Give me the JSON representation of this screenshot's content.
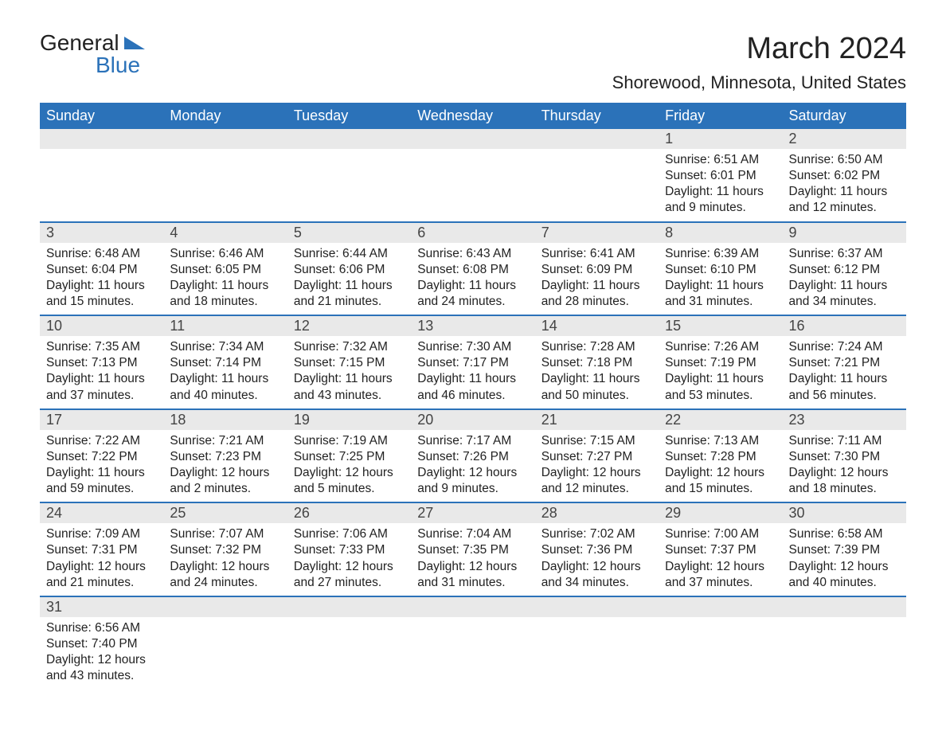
{
  "logo": {
    "text1": "General",
    "text2": "Blue"
  },
  "title": "March 2024",
  "location": "Shorewood, Minnesota, United States",
  "colors": {
    "header_bg": "#2b72b9",
    "header_text": "#ffffff",
    "daynum_bg": "#e9e9e9",
    "text": "#222222",
    "row_divider": "#2b72b9"
  },
  "weekdays": [
    "Sunday",
    "Monday",
    "Tuesday",
    "Wednesday",
    "Thursday",
    "Friday",
    "Saturday"
  ],
  "weeks": [
    [
      null,
      null,
      null,
      null,
      null,
      {
        "d": "1",
        "sr": "Sunrise: 6:51 AM",
        "ss": "Sunset: 6:01 PM",
        "dl1": "Daylight: 11 hours",
        "dl2": "and 9 minutes."
      },
      {
        "d": "2",
        "sr": "Sunrise: 6:50 AM",
        "ss": "Sunset: 6:02 PM",
        "dl1": "Daylight: 11 hours",
        "dl2": "and 12 minutes."
      }
    ],
    [
      {
        "d": "3",
        "sr": "Sunrise: 6:48 AM",
        "ss": "Sunset: 6:04 PM",
        "dl1": "Daylight: 11 hours",
        "dl2": "and 15 minutes."
      },
      {
        "d": "4",
        "sr": "Sunrise: 6:46 AM",
        "ss": "Sunset: 6:05 PM",
        "dl1": "Daylight: 11 hours",
        "dl2": "and 18 minutes."
      },
      {
        "d": "5",
        "sr": "Sunrise: 6:44 AM",
        "ss": "Sunset: 6:06 PM",
        "dl1": "Daylight: 11 hours",
        "dl2": "and 21 minutes."
      },
      {
        "d": "6",
        "sr": "Sunrise: 6:43 AM",
        "ss": "Sunset: 6:08 PM",
        "dl1": "Daylight: 11 hours",
        "dl2": "and 24 minutes."
      },
      {
        "d": "7",
        "sr": "Sunrise: 6:41 AM",
        "ss": "Sunset: 6:09 PM",
        "dl1": "Daylight: 11 hours",
        "dl2": "and 28 minutes."
      },
      {
        "d": "8",
        "sr": "Sunrise: 6:39 AM",
        "ss": "Sunset: 6:10 PM",
        "dl1": "Daylight: 11 hours",
        "dl2": "and 31 minutes."
      },
      {
        "d": "9",
        "sr": "Sunrise: 6:37 AM",
        "ss": "Sunset: 6:12 PM",
        "dl1": "Daylight: 11 hours",
        "dl2": "and 34 minutes."
      }
    ],
    [
      {
        "d": "10",
        "sr": "Sunrise: 7:35 AM",
        "ss": "Sunset: 7:13 PM",
        "dl1": "Daylight: 11 hours",
        "dl2": "and 37 minutes."
      },
      {
        "d": "11",
        "sr": "Sunrise: 7:34 AM",
        "ss": "Sunset: 7:14 PM",
        "dl1": "Daylight: 11 hours",
        "dl2": "and 40 minutes."
      },
      {
        "d": "12",
        "sr": "Sunrise: 7:32 AM",
        "ss": "Sunset: 7:15 PM",
        "dl1": "Daylight: 11 hours",
        "dl2": "and 43 minutes."
      },
      {
        "d": "13",
        "sr": "Sunrise: 7:30 AM",
        "ss": "Sunset: 7:17 PM",
        "dl1": "Daylight: 11 hours",
        "dl2": "and 46 minutes."
      },
      {
        "d": "14",
        "sr": "Sunrise: 7:28 AM",
        "ss": "Sunset: 7:18 PM",
        "dl1": "Daylight: 11 hours",
        "dl2": "and 50 minutes."
      },
      {
        "d": "15",
        "sr": "Sunrise: 7:26 AM",
        "ss": "Sunset: 7:19 PM",
        "dl1": "Daylight: 11 hours",
        "dl2": "and 53 minutes."
      },
      {
        "d": "16",
        "sr": "Sunrise: 7:24 AM",
        "ss": "Sunset: 7:21 PM",
        "dl1": "Daylight: 11 hours",
        "dl2": "and 56 minutes."
      }
    ],
    [
      {
        "d": "17",
        "sr": "Sunrise: 7:22 AM",
        "ss": "Sunset: 7:22 PM",
        "dl1": "Daylight: 11 hours",
        "dl2": "and 59 minutes."
      },
      {
        "d": "18",
        "sr": "Sunrise: 7:21 AM",
        "ss": "Sunset: 7:23 PM",
        "dl1": "Daylight: 12 hours",
        "dl2": "and 2 minutes."
      },
      {
        "d": "19",
        "sr": "Sunrise: 7:19 AM",
        "ss": "Sunset: 7:25 PM",
        "dl1": "Daylight: 12 hours",
        "dl2": "and 5 minutes."
      },
      {
        "d": "20",
        "sr": "Sunrise: 7:17 AM",
        "ss": "Sunset: 7:26 PM",
        "dl1": "Daylight: 12 hours",
        "dl2": "and 9 minutes."
      },
      {
        "d": "21",
        "sr": "Sunrise: 7:15 AM",
        "ss": "Sunset: 7:27 PM",
        "dl1": "Daylight: 12 hours",
        "dl2": "and 12 minutes."
      },
      {
        "d": "22",
        "sr": "Sunrise: 7:13 AM",
        "ss": "Sunset: 7:28 PM",
        "dl1": "Daylight: 12 hours",
        "dl2": "and 15 minutes."
      },
      {
        "d": "23",
        "sr": "Sunrise: 7:11 AM",
        "ss": "Sunset: 7:30 PM",
        "dl1": "Daylight: 12 hours",
        "dl2": "and 18 minutes."
      }
    ],
    [
      {
        "d": "24",
        "sr": "Sunrise: 7:09 AM",
        "ss": "Sunset: 7:31 PM",
        "dl1": "Daylight: 12 hours",
        "dl2": "and 21 minutes."
      },
      {
        "d": "25",
        "sr": "Sunrise: 7:07 AM",
        "ss": "Sunset: 7:32 PM",
        "dl1": "Daylight: 12 hours",
        "dl2": "and 24 minutes."
      },
      {
        "d": "26",
        "sr": "Sunrise: 7:06 AM",
        "ss": "Sunset: 7:33 PM",
        "dl1": "Daylight: 12 hours",
        "dl2": "and 27 minutes."
      },
      {
        "d": "27",
        "sr": "Sunrise: 7:04 AM",
        "ss": "Sunset: 7:35 PM",
        "dl1": "Daylight: 12 hours",
        "dl2": "and 31 minutes."
      },
      {
        "d": "28",
        "sr": "Sunrise: 7:02 AM",
        "ss": "Sunset: 7:36 PM",
        "dl1": "Daylight: 12 hours",
        "dl2": "and 34 minutes."
      },
      {
        "d": "29",
        "sr": "Sunrise: 7:00 AM",
        "ss": "Sunset: 7:37 PM",
        "dl1": "Daylight: 12 hours",
        "dl2": "and 37 minutes."
      },
      {
        "d": "30",
        "sr": "Sunrise: 6:58 AM",
        "ss": "Sunset: 7:39 PM",
        "dl1": "Daylight: 12 hours",
        "dl2": "and 40 minutes."
      }
    ],
    [
      {
        "d": "31",
        "sr": "Sunrise: 6:56 AM",
        "ss": "Sunset: 7:40 PM",
        "dl1": "Daylight: 12 hours",
        "dl2": "and 43 minutes."
      },
      null,
      null,
      null,
      null,
      null,
      null
    ]
  ]
}
